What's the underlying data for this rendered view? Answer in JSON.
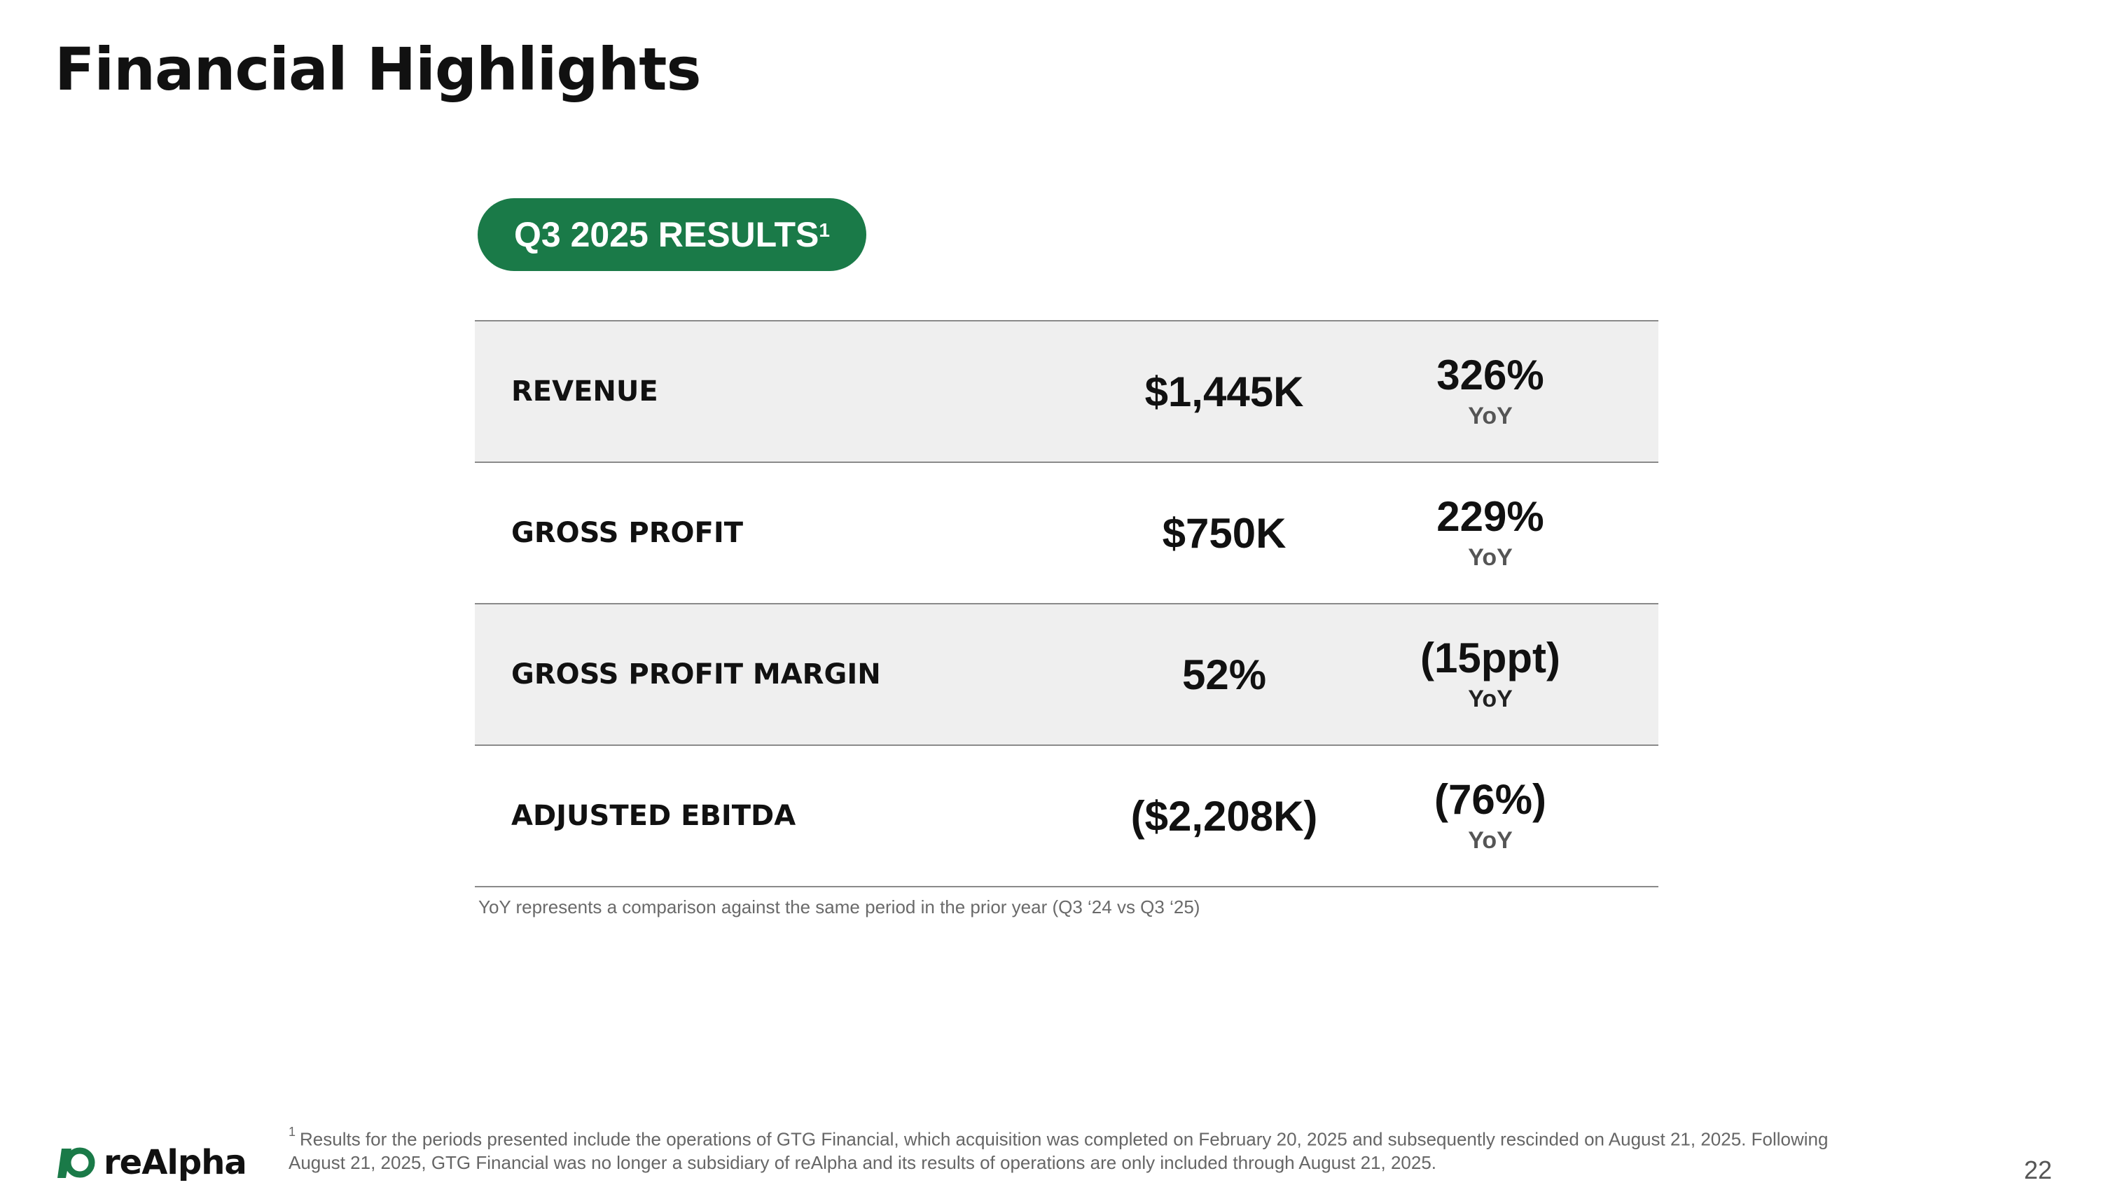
{
  "header": {
    "title": "Financial Highlights"
  },
  "badge": {
    "label": "Q3 2025 RESULTS",
    "superscript": "1",
    "color": "#1a7a48"
  },
  "metrics": [
    {
      "label": "REVENUE",
      "value": "$1,445K",
      "change": "326%",
      "period": "YoY"
    },
    {
      "label": "GROSS PROFIT",
      "value": "$750K",
      "change": "229%",
      "period": "YoY"
    },
    {
      "label": "GROSS PROFIT MARGIN",
      "value": "52%",
      "change": "(15ppt)",
      "period": "YoY"
    },
    {
      "label": "ADJUSTED EBITDA",
      "value": "($2,208K)",
      "change": "(76%)",
      "period": "YoY"
    }
  ],
  "note": "YoY represents a comparison against the same period in the prior year (Q3 ‘24 vs Q3 ‘25)",
  "footnote": {
    "marker": "1",
    "text": "Results for the periods presented include the operations of GTG Financial, which acquisition was completed on February 20, 2025 and subsequently rescinded on August 21, 2025. Following August 21, 2025, GTG Financial was no longer a subsidiary of reAlpha and its results of operations are only included through August 21, 2025."
  },
  "footer": {
    "brand": "reAlpha",
    "brand_color": "#1a7a48",
    "page_number": "22",
    "logo_icon": "realpha-logo-icon"
  }
}
